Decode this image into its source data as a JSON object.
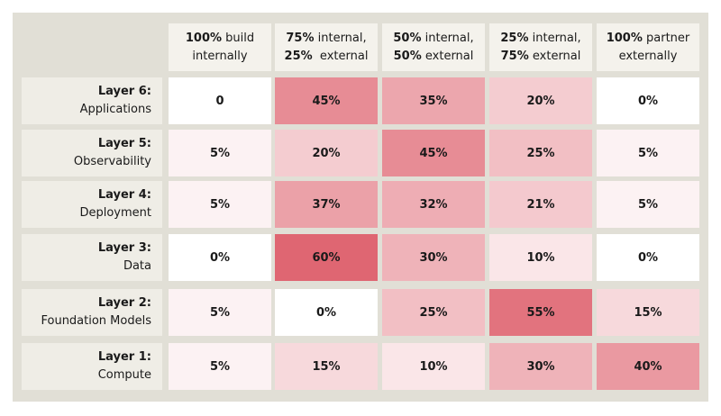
{
  "chart_data": {
    "type": "heatmap",
    "columns": [
      {
        "bold": "100%",
        "rest1": " build",
        "line2": "internally"
      },
      {
        "bold": "75%",
        "rest1": " internal,",
        "line2bold": "25%",
        "line2": "  external"
      },
      {
        "bold": "50%",
        "rest1": " internal,",
        "line2bold": "50%",
        "line2": " external"
      },
      {
        "bold": "25%",
        "rest1": " internal,",
        "line2bold": "75%",
        "line2": " external"
      },
      {
        "bold": "100%",
        "rest1": " partner",
        "line2": "externally"
      }
    ],
    "rows": [
      {
        "label": "Layer 6:",
        "sublabel": "Applications",
        "values": [
          "0",
          "45%",
          "35%",
          "20%",
          "0%"
        ]
      },
      {
        "label": "Layer 5:",
        "sublabel": "Observability",
        "values": [
          "5%",
          "20%",
          "45%",
          "25%",
          "5%"
        ]
      },
      {
        "label": "Layer 4:",
        "sublabel": "Deployment",
        "values": [
          "5%",
          "37%",
          "32%",
          "21%",
          "5%"
        ]
      },
      {
        "label": "Layer 3:",
        "sublabel": "Data",
        "values": [
          "0%",
          "60%",
          "30%",
          "10%",
          "0%"
        ]
      },
      {
        "label": "Layer 2:",
        "sublabel": "Foundation Models",
        "values": [
          "5%",
          "0%",
          "25%",
          "55%",
          "15%"
        ]
      },
      {
        "label": "Layer 1:",
        "sublabel": "Compute",
        "values": [
          "5%",
          "15%",
          "10%",
          "30%",
          "40%"
        ]
      }
    ],
    "color_scale": {
      "low": "#ffffff",
      "high": "#df6672",
      "max_value": 60
    }
  },
  "colors": {
    "frame": "#e1dfd6",
    "header_bg": "#f4f2ec",
    "row_header_bg": "#efede6"
  }
}
